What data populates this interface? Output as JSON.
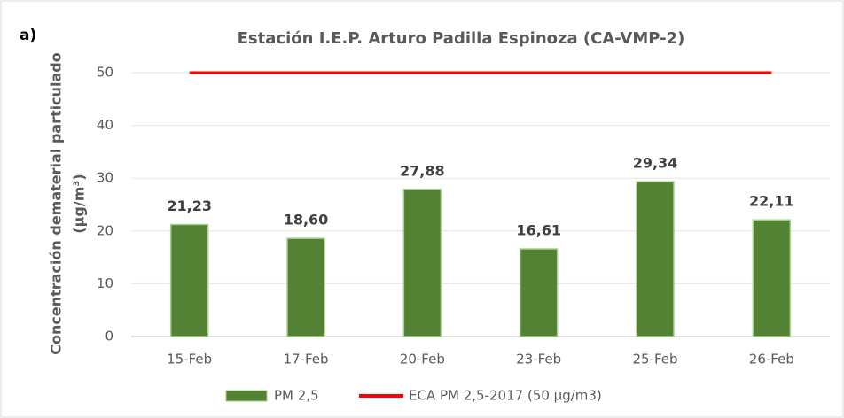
{
  "chart_data": {
    "type": "bar",
    "panel_label": "a)",
    "title": "Estación I.E.P. Arturo Padilla Espinoza (CA-VMP-2)",
    "ylabel": [
      "Concentración dematerial particulado",
      "(µg/m³)"
    ],
    "categories": [
      "15-Feb",
      "17-Feb",
      "20-Feb",
      "23-Feb",
      "25-Feb",
      "26-Feb"
    ],
    "series": [
      {
        "name": "PM 2,5",
        "type": "bar",
        "color": "#548235",
        "values": [
          21.23,
          18.6,
          27.88,
          16.61,
          29.34,
          22.11
        ],
        "value_labels": [
          "21,23",
          "18,60",
          "27,88",
          "16,61",
          "29,34",
          "22,11"
        ]
      },
      {
        "name": "ECA PM 2,5-2017 (50 µg/m3)",
        "type": "line",
        "color": "#ff0000",
        "values": [
          50,
          50,
          50,
          50,
          50,
          50
        ]
      }
    ],
    "ylim": [
      0,
      50
    ],
    "yticks": [
      0,
      10,
      20,
      30,
      40,
      50
    ],
    "grid": true
  }
}
